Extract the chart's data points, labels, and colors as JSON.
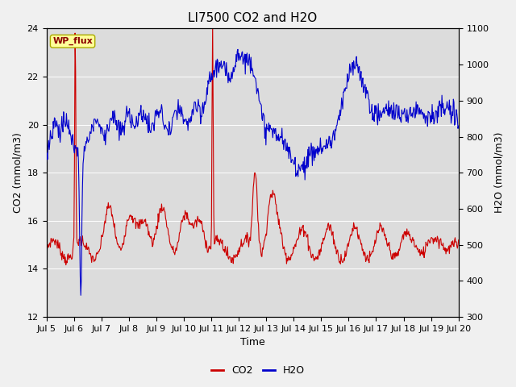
{
  "title": "LI7500 CO2 and H2O",
  "xlabel": "Time",
  "ylabel_left": "CO2 (mmol/m3)",
  "ylabel_right": "H2O (mmol/m3)",
  "co2_ylim": [
    12,
    24
  ],
  "h2o_ylim": [
    300,
    1100
  ],
  "co2_yticks": [
    12,
    14,
    16,
    18,
    20,
    22,
    24
  ],
  "h2o_yticks": [
    300,
    400,
    500,
    600,
    700,
    800,
    900,
    1000,
    1100
  ],
  "xtick_labels": [
    "Jul 5",
    "Jul 6",
    "Jul 7",
    "Jul 8",
    "Jul 9",
    "Jul 10",
    "Jul 11",
    "Jul 12",
    "Jul 13",
    "Jul 14",
    "Jul 15",
    "Jul 16",
    "Jul 17",
    "Jul 18",
    "Jul 19",
    "Jul 20"
  ],
  "co2_color": "#cc0000",
  "h2o_color": "#0000cc",
  "fig_bg_color": "#f0f0f0",
  "plot_bg_color": "#dcdcdc",
  "grid_color": "#ffffff",
  "annotation_text": "WP_flux",
  "annotation_bg": "#ffff99",
  "annotation_border": "#aaaa00",
  "title_fontsize": 11,
  "label_fontsize": 9,
  "tick_fontsize": 8,
  "legend_fontsize": 9
}
